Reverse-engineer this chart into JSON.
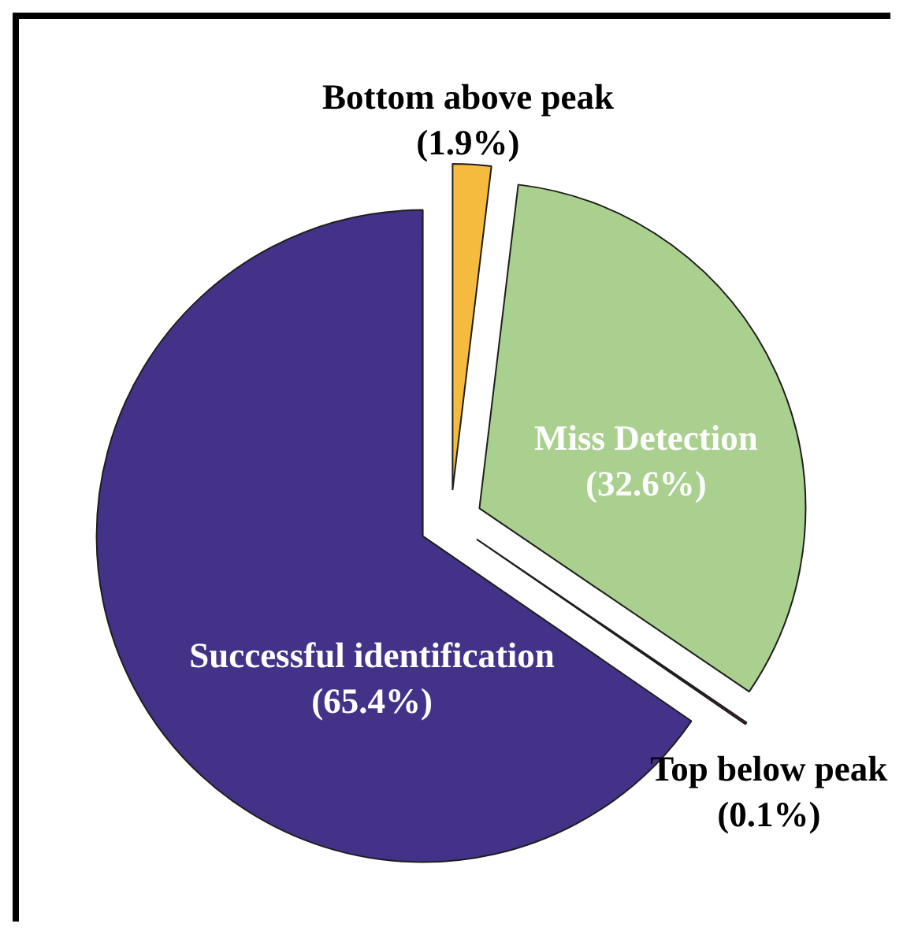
{
  "chart_data": {
    "type": "pie",
    "categories": [
      "Bottom above peak",
      "Miss Detection",
      "Top below peak",
      "Successful identification"
    ],
    "values": [
      1.9,
      32.6,
      0.1,
      65.4
    ],
    "colors": [
      "#f4bb3f",
      "#a9d08e",
      "#7a2a1e",
      "#433288"
    ],
    "value_labels": [
      "(1.9%)",
      "(32.6%)",
      "(0.1%)",
      "(65.4%)"
    ],
    "legend": false
  }
}
